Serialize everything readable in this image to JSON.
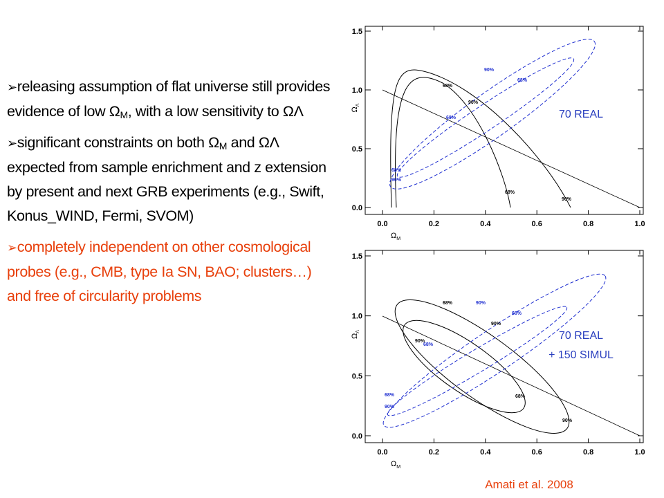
{
  "bullets": [
    [
      "releasing assumption of flat universe still provides evidence of low ",
      "Ω",
      "M",
      ", with a low sensitivity to ",
      "ΩΛ"
    ],
    [
      "significant constraints on both ",
      "Ω",
      "M",
      " and ",
      "ΩΛ",
      "  expected from sample enrichment and z extension by present and next GRB experiments (e.g., Swift, Konus_WIND, Fermi, SVOM)"
    ],
    [
      "completely independent on other cosmological probes (e.g., CMB, type Ia SN, BAO; clusters…) and free  of circularity problems"
    ]
  ],
  "plots": [
    {
      "xlabel": [
        "Ω",
        "M"
      ],
      "ylabel": [
        "Ω",
        "Λ"
      ],
      "xlim": [
        0,
        1
      ],
      "ylim": [
        0,
        1.5
      ],
      "xticks": [
        {
          "value": 0,
          "label": "0.0"
        },
        0.2,
        0.4,
        0.6,
        0.8,
        {
          "value": 1,
          "label": "1.0"
        }
      ],
      "yticks": [
        {
          "value": 0,
          "label": "0.0"
        },
        0.5,
        {
          "value": 1,
          "label": "1.0"
        },
        1.5
      ],
      "contour_labels": [
        "68%",
        "90%"
      ],
      "annotation": [
        "70 REAL"
      ]
    },
    {
      "xlabel": [
        "Ω",
        "M"
      ],
      "ylabel": [
        "Ω",
        "Λ"
      ],
      "xlim": [
        0,
        1
      ],
      "ylim": [
        0,
        1.5
      ],
      "xticks": [
        {
          "value": 0,
          "label": "0.0"
        },
        0.2,
        0.4,
        0.6,
        0.8,
        {
          "value": 1,
          "label": "1.0"
        }
      ],
      "yticks": [
        {
          "value": 0,
          "label": "0.0"
        },
        0.5,
        {
          "value": 1,
          "label": "1.0"
        },
        1.5
      ],
      "contour_labels": [
        "68%",
        "90%"
      ],
      "annotation": [
        "70 REAL",
        "+ 150 SIMUL"
      ]
    }
  ],
  "caption": "Amati et al. 2008"
}
